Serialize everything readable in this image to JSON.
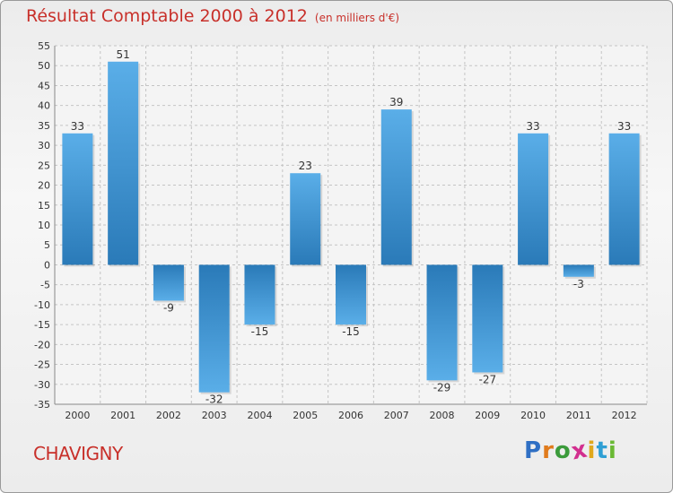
{
  "title": "Résultat Comptable 2000 à 2012",
  "subtitle": "(en milliers d'€)",
  "commune": "CHAVIGNY",
  "logo": {
    "text": "Proxiti",
    "letters": [
      {
        "ch": "P",
        "color": "#2f6fc4"
      },
      {
        "ch": "r",
        "color": "#e07b1c"
      },
      {
        "ch": "o",
        "color": "#3b9b3b"
      },
      {
        "ch": "x",
        "color": "#d22f8f"
      },
      {
        "ch": "i",
        "color": "#e0a81c"
      },
      {
        "ch": "t",
        "color": "#2f9fd4"
      },
      {
        "ch": "i",
        "color": "#6ab934"
      }
    ]
  },
  "colors": {
    "bar_light": "#5aaee8",
    "bar_dark": "#2a7ab8",
    "title": "#c8302a",
    "grid": "#c4c4c4"
  },
  "chart_data": {
    "type": "bar",
    "title": "Résultat Comptable 2000 à 2012",
    "subtitle": "(en milliers d'€)",
    "xlabel": "",
    "ylabel": "",
    "categories": [
      "2000",
      "2001",
      "2002",
      "2003",
      "2004",
      "2005",
      "2006",
      "2007",
      "2008",
      "2009",
      "2010",
      "2011",
      "2012"
    ],
    "values": [
      33,
      51,
      -9,
      -32,
      -15,
      23,
      -15,
      39,
      -29,
      -27,
      33,
      -3,
      33
    ],
    "ylim": [
      -35,
      55
    ],
    "yticks": [
      55,
      50,
      45,
      40,
      35,
      30,
      25,
      20,
      15,
      10,
      5,
      0,
      -5,
      -10,
      -15,
      -20,
      -25,
      -30,
      -35
    ],
    "grid": true,
    "legend": "none"
  }
}
